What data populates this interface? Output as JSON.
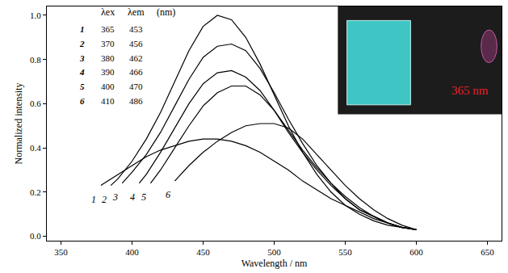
{
  "chart_data": {
    "type": "line",
    "x_label": "Wavelength / nm",
    "y_label": "Normalized intensity",
    "xlim": [
      340,
      660
    ],
    "xticks": [
      350,
      400,
      450,
      500,
      550,
      600,
      650
    ],
    "ylim": [
      -0.02,
      1.04
    ],
    "yticks": [
      {
        "value": 0,
        "label": "0.0"
      },
      {
        "value": 0.2,
        "label": "0.2"
      },
      {
        "value": 0.4,
        "label": "0.4"
      },
      {
        "value": 0.6,
        "label": "0.6"
      },
      {
        "value": 0.8,
        "label": "0.8"
      },
      {
        "value": 1,
        "label": "1.0"
      }
    ],
    "grid": false,
    "color": "#000000",
    "legend_table": {
      "header": [
        "λex",
        "λem",
        "(nm)"
      ],
      "rows": [
        [
          1,
          365,
          453
        ],
        [
          2,
          370,
          456
        ],
        [
          3,
          380,
          462
        ],
        [
          4,
          390,
          466
        ],
        [
          5,
          400,
          470
        ],
        [
          6,
          410,
          486
        ]
      ]
    },
    "annotations": [
      {
        "text": "365 nm",
        "color": "#e8202a"
      }
    ],
    "series": [
      {
        "name": "1",
        "x": [
          378,
          390,
          400,
          410,
          420,
          430,
          440,
          450,
          460,
          470,
          480,
          490,
          500,
          510,
          520,
          530,
          540,
          550,
          560,
          570,
          580,
          590,
          600
        ],
        "values": [
          0.23,
          0.28,
          0.32,
          0.36,
          0.39,
          0.41,
          0.43,
          0.44,
          0.44,
          0.43,
          0.41,
          0.38,
          0.34,
          0.3,
          0.25,
          0.21,
          0.17,
          0.14,
          0.11,
          0.08,
          0.06,
          0.04,
          0.03
        ]
      },
      {
        "name": "2",
        "x": [
          385,
          390,
          400,
          410,
          420,
          430,
          440,
          450,
          460,
          470,
          480,
          490,
          500,
          510,
          520,
          530,
          540,
          550,
          560,
          570,
          580,
          590,
          600
        ],
        "values": [
          0.23,
          0.26,
          0.34,
          0.44,
          0.56,
          0.7,
          0.84,
          0.95,
          1.0,
          0.98,
          0.9,
          0.78,
          0.64,
          0.5,
          0.38,
          0.28,
          0.2,
          0.14,
          0.1,
          0.07,
          0.05,
          0.04,
          0.03
        ]
      },
      {
        "name": "3",
        "x": [
          393,
          400,
          410,
          420,
          430,
          440,
          450,
          460,
          470,
          480,
          490,
          500,
          510,
          520,
          530,
          540,
          550,
          560,
          570,
          580,
          590,
          600
        ],
        "values": [
          0.24,
          0.29,
          0.37,
          0.47,
          0.59,
          0.71,
          0.81,
          0.86,
          0.87,
          0.84,
          0.76,
          0.65,
          0.53,
          0.42,
          0.32,
          0.24,
          0.17,
          0.12,
          0.09,
          0.06,
          0.04,
          0.03
        ]
      },
      {
        "name": "4",
        "x": [
          405,
          410,
          420,
          430,
          440,
          450,
          460,
          470,
          480,
          490,
          500,
          510,
          520,
          530,
          540,
          550,
          560,
          570,
          580,
          590,
          600
        ],
        "values": [
          0.24,
          0.28,
          0.38,
          0.49,
          0.6,
          0.69,
          0.74,
          0.75,
          0.72,
          0.66,
          0.57,
          0.47,
          0.38,
          0.3,
          0.23,
          0.17,
          0.12,
          0.09,
          0.06,
          0.04,
          0.03
        ]
      },
      {
        "name": "5",
        "x": [
          413,
          420,
          430,
          440,
          450,
          460,
          470,
          480,
          490,
          500,
          510,
          520,
          530,
          540,
          550,
          560,
          570,
          580,
          590,
          600
        ],
        "values": [
          0.24,
          0.3,
          0.4,
          0.5,
          0.59,
          0.65,
          0.68,
          0.68,
          0.64,
          0.57,
          0.48,
          0.39,
          0.31,
          0.24,
          0.18,
          0.13,
          0.09,
          0.06,
          0.04,
          0.03
        ]
      },
      {
        "name": "6",
        "x": [
          430,
          440,
          450,
          460,
          470,
          480,
          490,
          500,
          510,
          520,
          530,
          540,
          550,
          560,
          570,
          580,
          590,
          600
        ],
        "values": [
          0.25,
          0.32,
          0.38,
          0.43,
          0.47,
          0.5,
          0.51,
          0.51,
          0.49,
          0.44,
          0.37,
          0.3,
          0.23,
          0.17,
          0.12,
          0.08,
          0.05,
          0.03
        ]
      }
    ]
  }
}
